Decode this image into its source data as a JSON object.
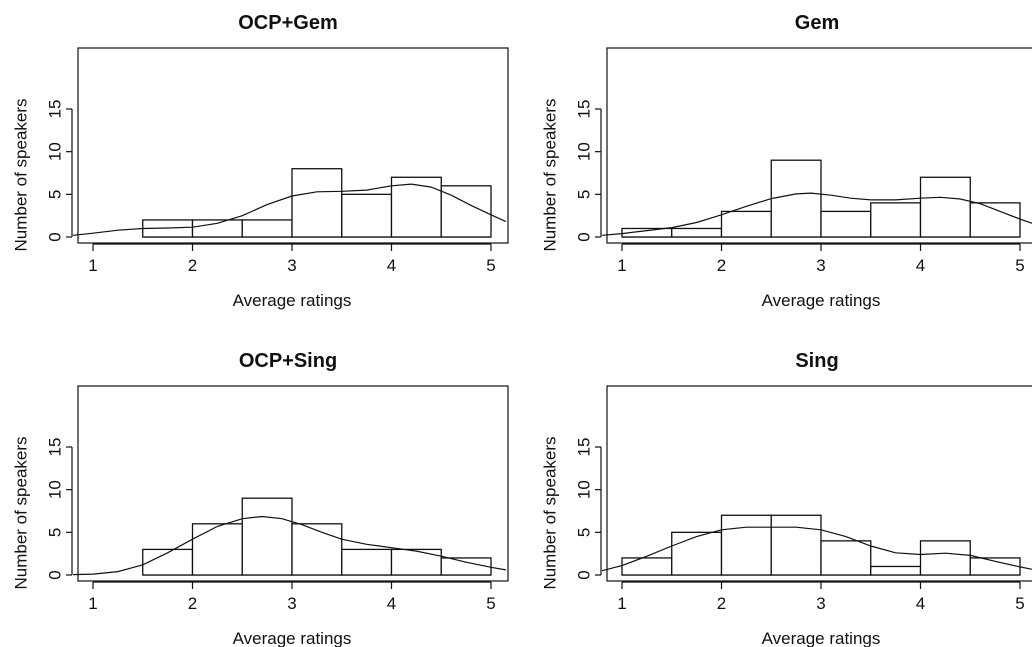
{
  "chart_data": [
    {
      "type": "bar",
      "title": "OCP+Gem",
      "xlabel": "Average ratings",
      "ylabel": "Number of speakers",
      "xlim": [
        0.8,
        5.15
      ],
      "ylim": [
        0,
        15
      ],
      "xticks": [
        "1",
        "2",
        "3",
        "4",
        "5"
      ],
      "yticks": [
        "0",
        "5",
        "10",
        "15"
      ],
      "bin_width": 0.5,
      "bins": [
        {
          "start": 1.5,
          "end": 2.0,
          "count": 2
        },
        {
          "start": 2.0,
          "end": 2.5,
          "count": 2
        },
        {
          "start": 2.5,
          "end": 3.0,
          "count": 2
        },
        {
          "start": 3.0,
          "end": 3.5,
          "count": 8
        },
        {
          "start": 3.5,
          "end": 4.0,
          "count": 5
        },
        {
          "start": 4.0,
          "end": 4.5,
          "count": 7
        },
        {
          "start": 4.5,
          "end": 5.0,
          "count": 6
        }
      ],
      "density_curve": [
        [
          0.8,
          0.2
        ],
        [
          1.0,
          0.45
        ],
        [
          1.25,
          0.8
        ],
        [
          1.5,
          1.0
        ],
        [
          1.75,
          1.05
        ],
        [
          2.0,
          1.15
        ],
        [
          2.25,
          1.6
        ],
        [
          2.5,
          2.5
        ],
        [
          2.75,
          3.8
        ],
        [
          3.0,
          4.8
        ],
        [
          3.25,
          5.3
        ],
        [
          3.5,
          5.35
        ],
        [
          3.75,
          5.5
        ],
        [
          4.0,
          6.0
        ],
        [
          4.2,
          6.2
        ],
        [
          4.4,
          5.85
        ],
        [
          4.6,
          4.9
        ],
        [
          4.8,
          3.7
        ],
        [
          5.0,
          2.6
        ],
        [
          5.15,
          1.8
        ]
      ]
    },
    {
      "type": "bar",
      "title": "Gem",
      "xlabel": "Average ratings",
      "ylabel": "Number of speakers",
      "xlim": [
        0.8,
        5.15
      ],
      "ylim": [
        0,
        15
      ],
      "xticks": [
        "1",
        "2",
        "3",
        "4",
        "5"
      ],
      "yticks": [
        "0",
        "5",
        "10",
        "15"
      ],
      "bin_width": 0.5,
      "bins": [
        {
          "start": 1.0,
          "end": 1.5,
          "count": 1
        },
        {
          "start": 1.5,
          "end": 2.0,
          "count": 1
        },
        {
          "start": 2.0,
          "end": 2.5,
          "count": 3
        },
        {
          "start": 2.5,
          "end": 3.0,
          "count": 9
        },
        {
          "start": 3.0,
          "end": 3.5,
          "count": 3
        },
        {
          "start": 3.5,
          "end": 4.0,
          "count": 4
        },
        {
          "start": 4.0,
          "end": 4.5,
          "count": 7
        },
        {
          "start": 4.5,
          "end": 5.0,
          "count": 4
        }
      ],
      "density_curve": [
        [
          0.8,
          0.2
        ],
        [
          1.0,
          0.4
        ],
        [
          1.25,
          0.75
        ],
        [
          1.5,
          1.1
        ],
        [
          1.75,
          1.7
        ],
        [
          2.0,
          2.6
        ],
        [
          2.25,
          3.6
        ],
        [
          2.5,
          4.5
        ],
        [
          2.75,
          5.05
        ],
        [
          2.9,
          5.15
        ],
        [
          3.1,
          4.9
        ],
        [
          3.3,
          4.55
        ],
        [
          3.5,
          4.35
        ],
        [
          3.75,
          4.35
        ],
        [
          4.0,
          4.55
        ],
        [
          4.2,
          4.65
        ],
        [
          4.4,
          4.45
        ],
        [
          4.6,
          3.9
        ],
        [
          4.8,
          3.0
        ],
        [
          5.0,
          2.1
        ],
        [
          5.15,
          1.5
        ]
      ]
    },
    {
      "type": "bar",
      "title": "OCP+Sing",
      "xlabel": "Average ratings",
      "ylabel": "Number of speakers",
      "xlim": [
        0.8,
        5.15
      ],
      "ylim": [
        0,
        15
      ],
      "xticks": [
        "1",
        "2",
        "3",
        "4",
        "5"
      ],
      "yticks": [
        "0",
        "5",
        "10",
        "15"
      ],
      "bin_width": 0.5,
      "bins": [
        {
          "start": 1.5,
          "end": 2.0,
          "count": 3
        },
        {
          "start": 2.0,
          "end": 2.5,
          "count": 6
        },
        {
          "start": 2.5,
          "end": 3.0,
          "count": 9
        },
        {
          "start": 3.0,
          "end": 3.5,
          "count": 6
        },
        {
          "start": 3.5,
          "end": 4.0,
          "count": 3
        },
        {
          "start": 4.0,
          "end": 4.5,
          "count": 3
        },
        {
          "start": 4.5,
          "end": 5.0,
          "count": 2
        }
      ],
      "density_curve": [
        [
          0.8,
          0.05
        ],
        [
          1.0,
          0.1
        ],
        [
          1.25,
          0.4
        ],
        [
          1.5,
          1.2
        ],
        [
          1.75,
          2.6
        ],
        [
          2.0,
          4.2
        ],
        [
          2.25,
          5.7
        ],
        [
          2.5,
          6.6
        ],
        [
          2.7,
          6.85
        ],
        [
          2.9,
          6.6
        ],
        [
          3.1,
          5.9
        ],
        [
          3.3,
          5.0
        ],
        [
          3.5,
          4.2
        ],
        [
          3.75,
          3.6
        ],
        [
          4.0,
          3.2
        ],
        [
          4.25,
          2.8
        ],
        [
          4.5,
          2.2
        ],
        [
          4.75,
          1.5
        ],
        [
          5.0,
          0.9
        ],
        [
          5.15,
          0.6
        ]
      ]
    },
    {
      "type": "bar",
      "title": "Sing",
      "xlabel": "Average ratings",
      "ylabel": "Number of speakers",
      "xlim": [
        0.8,
        5.15
      ],
      "ylim": [
        0,
        15
      ],
      "xticks": [
        "1",
        "2",
        "3",
        "4",
        "5"
      ],
      "yticks": [
        "0",
        "5",
        "10",
        "15"
      ],
      "bin_width": 0.5,
      "bins": [
        {
          "start": 1.0,
          "end": 1.5,
          "count": 2
        },
        {
          "start": 1.5,
          "end": 2.0,
          "count": 5
        },
        {
          "start": 2.0,
          "end": 2.5,
          "count": 7
        },
        {
          "start": 2.5,
          "end": 3.0,
          "count": 7
        },
        {
          "start": 3.0,
          "end": 3.5,
          "count": 4
        },
        {
          "start": 3.5,
          "end": 4.0,
          "count": 1
        },
        {
          "start": 4.0,
          "end": 4.5,
          "count": 4
        },
        {
          "start": 4.5,
          "end": 5.0,
          "count": 2
        }
      ],
      "density_curve": [
        [
          0.8,
          0.5
        ],
        [
          1.0,
          1.1
        ],
        [
          1.25,
          2.2
        ],
        [
          1.5,
          3.4
        ],
        [
          1.75,
          4.5
        ],
        [
          2.0,
          5.3
        ],
        [
          2.25,
          5.6
        ],
        [
          2.5,
          5.6
        ],
        [
          2.75,
          5.6
        ],
        [
          3.0,
          5.3
        ],
        [
          3.25,
          4.5
        ],
        [
          3.5,
          3.4
        ],
        [
          3.75,
          2.6
        ],
        [
          4.0,
          2.4
        ],
        [
          4.25,
          2.55
        ],
        [
          4.5,
          2.3
        ],
        [
          4.75,
          1.6
        ],
        [
          5.0,
          0.95
        ],
        [
          5.15,
          0.6
        ]
      ]
    }
  ]
}
